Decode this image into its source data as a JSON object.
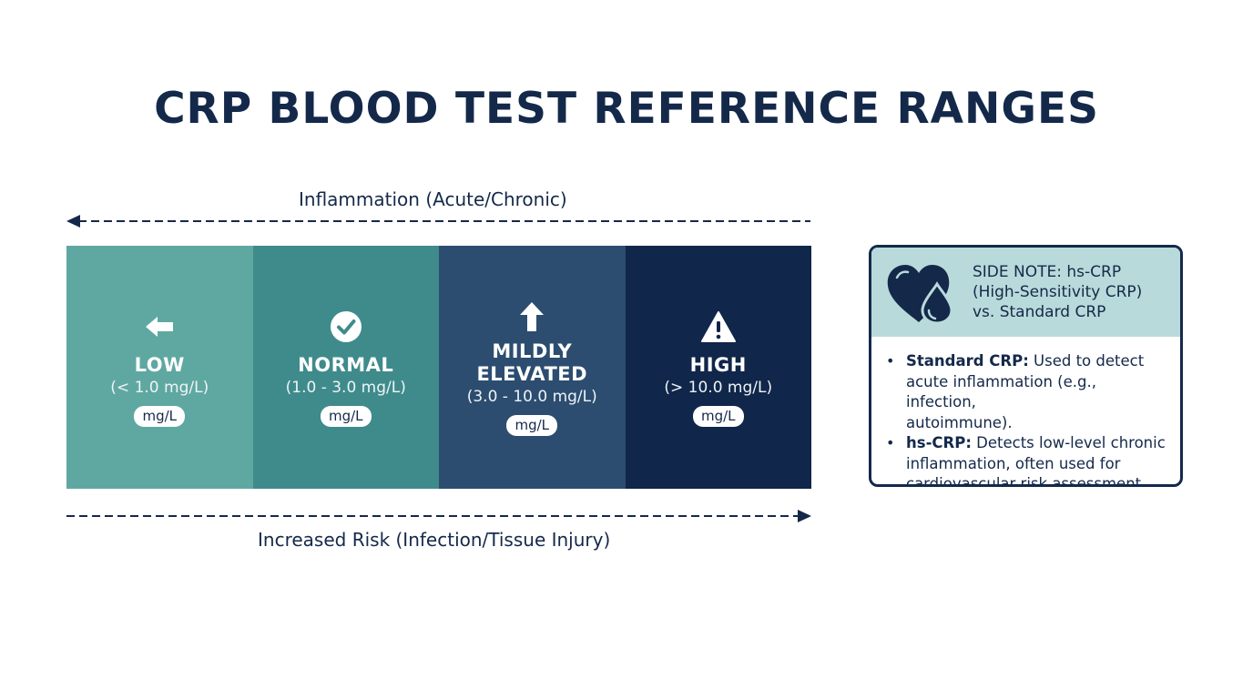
{
  "title": "CRP BLOOD TEST REFERENCE RANGES",
  "top_arrow": {
    "label": "Inflammation (Acute/Chronic)",
    "direction": "left"
  },
  "bottom_arrow": {
    "label": "Increased Risk (Infection/Tissue Injury)",
    "direction": "right"
  },
  "segments": [
    {
      "name": "LOW",
      "range": "(< 1.0 mg/L)",
      "unit": "mg/L",
      "icon": "arrow-left-icon",
      "color": "#5fa8a1"
    },
    {
      "name": "NORMAL",
      "range": "(1.0 - 3.0 mg/L)",
      "unit": "mg/L",
      "icon": "check-circle-icon",
      "color": "#3f8b8b"
    },
    {
      "name_line1": "MILDLY",
      "name_line2": "ELEVATED",
      "range": "(3.0 - 10.0 mg/L)",
      "unit": "mg/L",
      "icon": "arrow-up-icon",
      "color": "#2c4d70"
    },
    {
      "name": "HIGH",
      "range": "(> 10.0 mg/L)",
      "unit": "mg/L",
      "icon": "warning-icon",
      "color": "#10264a"
    }
  ],
  "side_note": {
    "icon": "heart-drop-icon",
    "title_lines": [
      "SIDE NOTE: hs-CRP",
      "(High-Sensitivity CRP)",
      "vs. Standard CRP"
    ],
    "items": [
      {
        "term": "Standard CRP:",
        "text_lines": [
          " Used to detect",
          "acute inflammation (e.g., infection,",
          "autoimmune)."
        ]
      },
      {
        "term": "hs-CRP:",
        "text_lines": [
          " Detects low-level chronic",
          "inflammation, often used for",
          "cardiovascular risk assessment."
        ]
      }
    ]
  },
  "colors": {
    "navy": "#14294a",
    "note_header": "#b9dada"
  }
}
